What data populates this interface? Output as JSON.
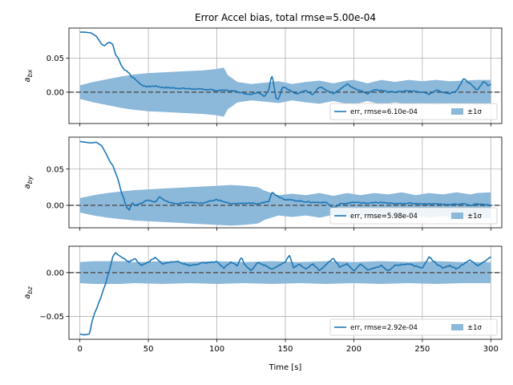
{
  "chart_data": {
    "type": "line",
    "title": "Error Accel bias, total rmse=5.00e-04",
    "xlabel": "Time [s]",
    "xlim": [
      -8,
      308
    ],
    "xticks": [
      0,
      50,
      100,
      150,
      200,
      250,
      300
    ],
    "grid": true,
    "shared_x": true,
    "zero_reference": "dashed gray line at 0",
    "colors": {
      "line": "#1f77b4",
      "band": "#8cb8da",
      "zero": "#555555",
      "grid": "#b0b0b0"
    },
    "subplots": [
      {
        "ylabel_base": "a",
        "ylabel_sub": "bx",
        "ylim": [
          -0.046,
          0.094
        ],
        "yticks": [
          0.0,
          0.05
        ],
        "ytick_labels": [
          "0.00",
          "0.05"
        ],
        "legend_position": "lower-right",
        "series": [
          {
            "name": "err, rmse=6.10e-04",
            "x": [
              0,
              3,
              8,
              12,
              14,
              16,
              18,
              20,
              22,
              24,
              26,
              28,
              30,
              32,
              35,
              38,
              40,
              44,
              48,
              55,
              60,
              70,
              80,
              90,
              95,
              100,
              105,
              110,
              115,
              120,
              125,
              130,
              135,
              138,
              140,
              141,
              143,
              145,
              148,
              152,
              158,
              165,
              170,
              175,
              180,
              185,
              190,
              195,
              200,
              210,
              215,
              220,
              230,
              240,
              250,
              255,
              260,
              265,
              270,
              275,
              280,
              285,
              290,
              295,
              298,
              300
            ],
            "y": [
              0.088,
              0.088,
              0.087,
              0.082,
              0.076,
              0.07,
              0.068,
              0.072,
              0.073,
              0.07,
              0.055,
              0.05,
              0.04,
              0.034,
              0.03,
              0.022,
              0.02,
              0.012,
              0.008,
              0.009,
              0.007,
              0.006,
              0.005,
              0.004,
              0.004,
              0.002,
              0.003,
              0.002,
              0.001,
              -0.002,
              -0.003,
              0.0,
              -0.006,
              0.004,
              0.025,
              0.018,
              -0.008,
              -0.01,
              0.008,
              0.004,
              -0.003,
              0.002,
              -0.004,
              0.008,
              0.003,
              -0.002,
              0.004,
              0.012,
              0.006,
              -0.002,
              0.004,
              0.002,
              0.0,
              0.002,
              0.0,
              -0.003,
              0.003,
              0.0,
              -0.002,
              0.002,
              0.02,
              0.012,
              0.003,
              0.016,
              0.01,
              0.012
            ]
          },
          {
            "name": "±1σ",
            "type": "area",
            "x": [
              0,
              10,
              20,
              30,
              40,
              50,
              60,
              70,
              80,
              90,
              100,
              105,
              108,
              115,
              125,
              135,
              145,
              155,
              165,
              175,
              185,
              195,
              200,
              210,
              220,
              230,
              240,
              250,
              260,
              270,
              280,
              290,
              300
            ],
            "upper": [
              0.01,
              0.015,
              0.019,
              0.023,
              0.026,
              0.028,
              0.029,
              0.03,
              0.031,
              0.032,
              0.034,
              0.036,
              0.025,
              0.015,
              0.012,
              0.014,
              0.016,
              0.012,
              0.015,
              0.017,
              0.013,
              0.017,
              0.018,
              0.013,
              0.018,
              0.015,
              0.018,
              0.016,
              0.018,
              0.016,
              0.017,
              0.018,
              0.018
            ]
          }
        ]
      },
      {
        "ylabel_base": "a",
        "ylabel_sub": "by",
        "ylim": [
          -0.031,
          0.094
        ],
        "yticks": [
          0.0,
          0.05
        ],
        "ytick_labels": [
          "0.00",
          "0.05"
        ],
        "legend_position": "lower-right",
        "series": [
          {
            "name": "err, rmse=5.98e-04",
            "x": [
              0,
              4,
              8,
              12,
              16,
              18,
              20,
              22,
              24,
              26,
              28,
              30,
              32,
              34,
              36,
              38,
              40,
              45,
              50,
              55,
              58,
              62,
              70,
              80,
              90,
              100,
              110,
              120,
              130,
              138,
              140,
              145,
              150,
              160,
              170,
              180,
              185,
              190,
              200,
              210,
              220,
              230,
              240,
              250,
              260,
              270,
              280,
              285,
              290,
              295,
              300
            ],
            "y": [
              0.088,
              0.087,
              0.086,
              0.087,
              0.082,
              0.075,
              0.068,
              0.06,
              0.055,
              0.045,
              0.035,
              0.02,
              0.01,
              -0.003,
              -0.006,
              0.003,
              0.0,
              0.003,
              0.008,
              0.004,
              0.012,
              0.006,
              0.002,
              0.004,
              0.003,
              0.008,
              0.002,
              0.003,
              0.002,
              0.006,
              0.018,
              0.012,
              0.008,
              0.006,
              0.004,
              0.004,
              -0.004,
              0.002,
              0.004,
              0.003,
              0.004,
              0.002,
              0.003,
              0.002,
              0.002,
              0.001,
              0.002,
              0.0,
              0.002,
              0.001,
              0.0
            ]
          },
          {
            "name": "±1σ",
            "type": "area",
            "x": [
              0,
              10,
              20,
              30,
              40,
              50,
              60,
              70,
              80,
              90,
              100,
              110,
              120,
              130,
              135,
              145,
              155,
              165,
              175,
              185,
              195,
              205,
              215,
              225,
              235,
              245,
              255,
              265,
              275,
              285,
              290,
              300
            ],
            "upper": [
              0.01,
              0.014,
              0.017,
              0.019,
              0.021,
              0.022,
              0.023,
              0.024,
              0.025,
              0.026,
              0.027,
              0.028,
              0.027,
              0.025,
              0.02,
              0.014,
              0.016,
              0.014,
              0.017,
              0.013,
              0.017,
              0.014,
              0.017,
              0.015,
              0.018,
              0.014,
              0.017,
              0.015,
              0.018,
              0.015,
              0.017,
              0.018
            ]
          }
        ]
      },
      {
        "ylabel_base": "a",
        "ylabel_sub": "bz",
        "ylim": [
          -0.076,
          0.03
        ],
        "yticks": [
          -0.05,
          0.0
        ],
        "ytick_labels": [
          "−0.05",
          "0.00"
        ],
        "legend_position": "lower-right",
        "series": [
          {
            "name": "err, rmse=2.92e-04",
            "x": [
              0,
              3,
              7,
              9,
              10,
              11,
              12,
              13,
              14,
              15,
              16,
              17,
              18,
              19,
              20,
              22,
              24,
              26,
              28,
              30,
              33,
              36,
              40,
              45,
              50,
              55,
              60,
              70,
              80,
              90,
              100,
              105,
              110,
              115,
              118,
              120,
              125,
              130,
              135,
              140,
              145,
              150,
              153,
              156,
              160,
              165,
              170,
              175,
              180,
              185,
              190,
              195,
              200,
              205,
              210,
              215,
              220,
              225,
              230,
              240,
              250,
              255,
              260,
              265,
              270,
              275,
              280,
              285,
              290,
              295,
              300
            ],
            "y": [
              -0.07,
              -0.071,
              -0.07,
              -0.055,
              -0.05,
              -0.045,
              -0.042,
              -0.038,
              -0.033,
              -0.03,
              -0.025,
              -0.02,
              -0.016,
              -0.012,
              -0.005,
              0.005,
              0.018,
              0.023,
              0.02,
              0.018,
              0.015,
              0.012,
              0.016,
              0.008,
              0.012,
              0.017,
              0.01,
              0.013,
              0.008,
              0.011,
              0.012,
              0.005,
              0.012,
              0.008,
              0.018,
              0.01,
              0.002,
              0.012,
              0.008,
              0.004,
              0.008,
              0.012,
              0.02,
              0.005,
              0.01,
              0.004,
              0.01,
              0.002,
              0.01,
              0.016,
              0.006,
              0.01,
              0.002,
              0.01,
              0.003,
              0.005,
              0.008,
              0.002,
              0.008,
              0.01,
              0.005,
              0.018,
              0.01,
              0.005,
              0.008,
              0.004,
              0.01,
              0.014,
              0.008,
              0.012,
              0.018
            ]
          },
          {
            "name": "±1σ",
            "type": "area",
            "x": [
              0,
              10,
              20,
              30,
              40,
              60,
              80,
              100,
              120,
              140,
              160,
              180,
              200,
              220,
              240,
              260,
              280,
              300
            ],
            "upper": [
              0.012,
              0.013,
              0.013,
              0.013,
              0.012,
              0.013,
              0.012,
              0.013,
              0.012,
              0.013,
              0.012,
              0.013,
              0.012,
              0.013,
              0.012,
              0.013,
              0.012,
              0.012
            ]
          }
        ]
      }
    ]
  }
}
